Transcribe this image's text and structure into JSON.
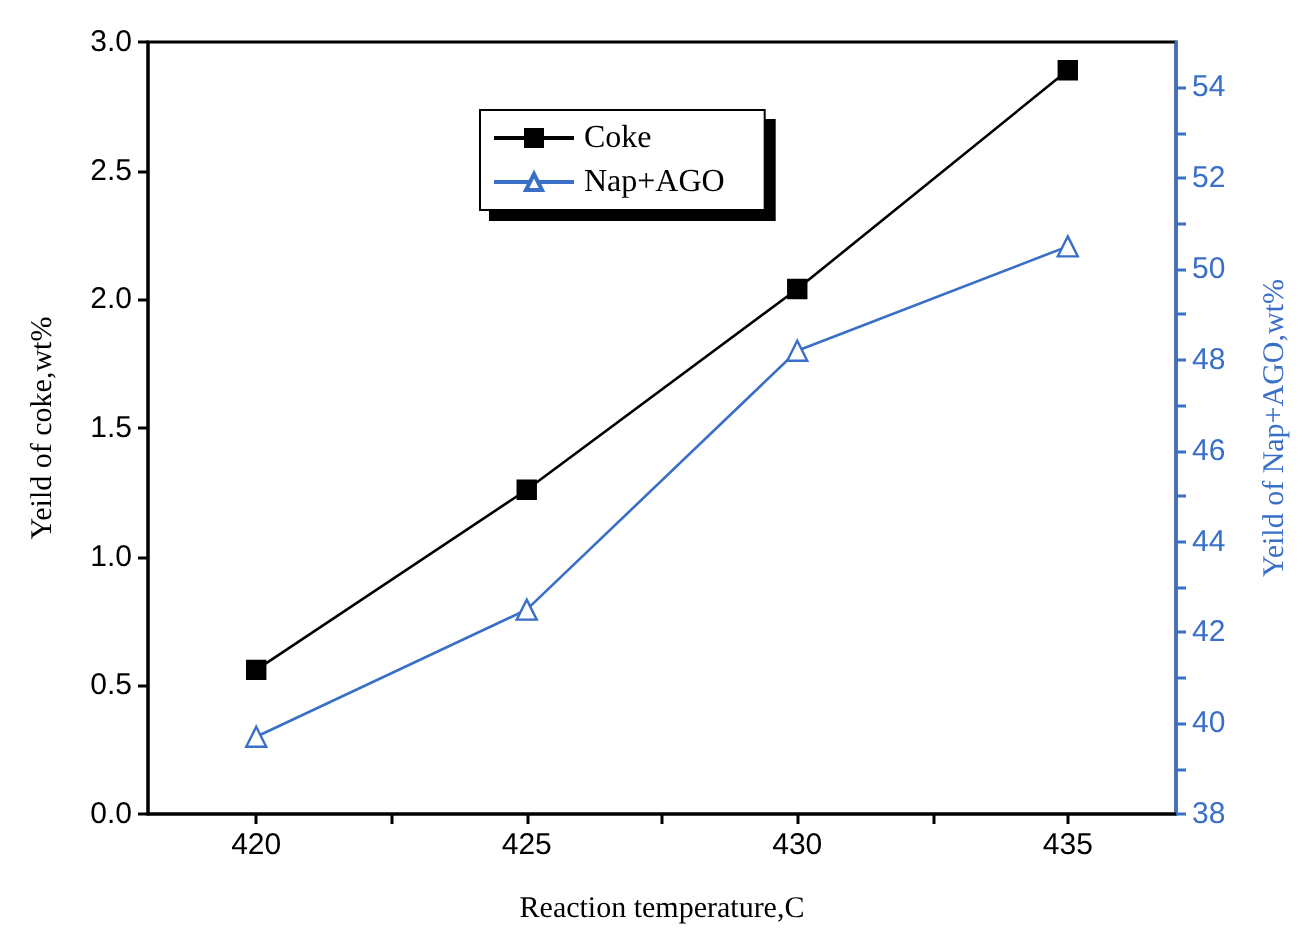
{
  "chart_data": {
    "type": "line",
    "xlabel": "Reaction temperature,C",
    "ylabel": "Yeild of coke,wt%",
    "y2label": "Yeild of Nap+AGO,wt%",
    "x": [
      420,
      425,
      430,
      435
    ],
    "series": [
      {
        "name": "Coke",
        "color": "#000000",
        "marker": "square",
        "values": [
          0.56,
          1.26,
          2.04,
          2.89
        ]
      },
      {
        "name": "Nap+AGO",
        "color": "#3a6fc8",
        "marker": "triangle",
        "axis": "y2",
        "values": [
          39.7,
          42.5,
          48.2,
          50.5
        ]
      }
    ],
    "xlim": [
      418,
      437
    ],
    "xticks": [
      420,
      {
        "value": 422.5,
        "label": null
      },
      425,
      {
        "value": 427.5,
        "label": null
      },
      430,
      {
        "value": 432.5,
        "label": null
      },
      435
    ],
    "ylim": [
      0,
      3
    ],
    "yticks": [
      {
        "value": 0,
        "label": "0.0"
      },
      {
        "value": 0.5,
        "label": "0.5"
      },
      {
        "value": 1,
        "label": "1.0"
      },
      {
        "value": 1.5,
        "label": "1.5"
      },
      {
        "value": 2,
        "label": "2.0"
      },
      {
        "value": 2.5,
        "label": "2.5"
      },
      {
        "value": 3,
        "label": "3.0"
      }
    ],
    "y2lim": [
      38,
      55
    ],
    "y2ticks": [
      38,
      {
        "value": 39,
        "label": null
      },
      40,
      {
        "value": 41,
        "label": null
      },
      42,
      {
        "value": 43,
        "label": null
      },
      44,
      {
        "value": 45,
        "label": null
      },
      46,
      {
        "value": 47,
        "label": null
      },
      48,
      {
        "value": 49,
        "label": null
      },
      50,
      {
        "value": 51,
        "label": null
      },
      52,
      {
        "value": 53,
        "label": null
      },
      54
    ],
    "grid": false,
    "legend": "top left",
    "line_style": "solid"
  }
}
